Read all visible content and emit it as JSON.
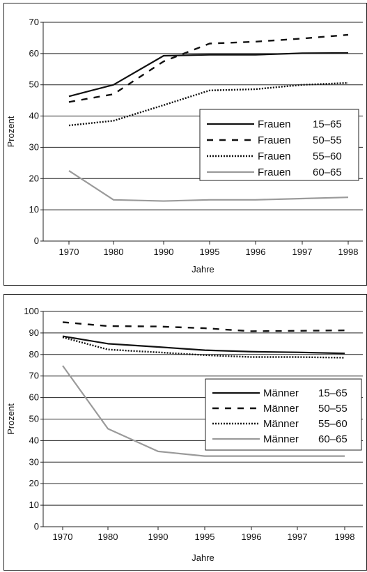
{
  "chart_data": [
    {
      "type": "line",
      "title": "",
      "xlabel": "Jahre",
      "ylabel": "Prozent",
      "categories": [
        "1970",
        "1980",
        "1990",
        "1995",
        "1996",
        "1997",
        "1998"
      ],
      "ylim": [
        0,
        70
      ],
      "yticks": [
        "0",
        "10",
        "20",
        "30",
        "40",
        "50",
        "60",
        "70"
      ],
      "grid": "horizontal",
      "legend_position": "right",
      "series": [
        {
          "name": "Frauen",
          "age": "15–65",
          "style": "solid",
          "color": "#111111",
          "values": [
            46.3,
            50,
            59.3,
            59.6,
            59.6,
            60.1,
            60.2
          ]
        },
        {
          "name": "Frauen",
          "age": "50–55",
          "style": "dashed",
          "color": "#111111",
          "values": [
            44.5,
            47,
            57.5,
            63.2,
            63.8,
            64.8,
            66
          ]
        },
        {
          "name": "Frauen",
          "age": "55–60",
          "style": "dotted",
          "color": "#111111",
          "values": [
            37,
            38.5,
            43.5,
            48.2,
            48.6,
            50,
            50.6
          ]
        },
        {
          "name": "Frauen",
          "age": "60–65",
          "style": "solid",
          "color": "#9a9a9a",
          "values": [
            22.5,
            13.2,
            12.8,
            13.2,
            13.2,
            13.6,
            14
          ]
        }
      ]
    },
    {
      "type": "line",
      "title": "",
      "xlabel": "Jahre",
      "ylabel": "Prozent",
      "categories": [
        "1970",
        "1980",
        "1990",
        "1995",
        "1996",
        "1997",
        "1998"
      ],
      "ylim": [
        0,
        100
      ],
      "yticks": [
        "0",
        "10",
        "20",
        "30",
        "40",
        "50",
        "60",
        "70",
        "80",
        "90",
        "100"
      ],
      "grid": "horizontal",
      "legend_position": "right",
      "series": [
        {
          "name": "Männer",
          "age": "15–65",
          "style": "solid",
          "color": "#111111",
          "values": [
            88.5,
            85,
            83.5,
            82,
            81.3,
            81,
            80.5
          ]
        },
        {
          "name": "Männer",
          "age": "50–55",
          "style": "dashed",
          "color": "#111111",
          "values": [
            95,
            93.2,
            93,
            92.2,
            90.8,
            91,
            91.2
          ]
        },
        {
          "name": "Männer",
          "age": "55–60",
          "style": "dotted",
          "color": "#111111",
          "values": [
            88,
            82.3,
            81,
            79.7,
            78.8,
            78.8,
            78.5
          ]
        },
        {
          "name": "Männer",
          "age": "60–65",
          "style": "solid",
          "color": "#9a9a9a",
          "values": [
            74.8,
            45.5,
            35,
            32.8,
            32.8,
            32.8,
            32.8
          ]
        }
      ]
    }
  ]
}
